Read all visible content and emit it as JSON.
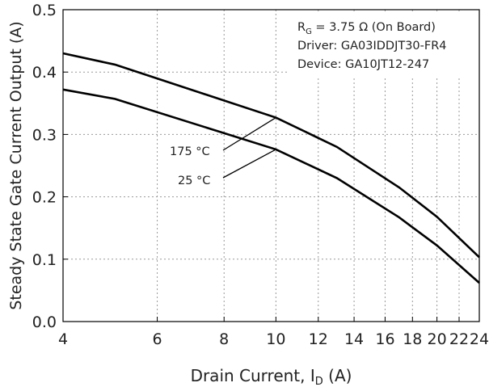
{
  "chart_data": {
    "type": "line",
    "xlabel": [
      "Drain Current, I",
      "D",
      " (A)"
    ],
    "ylabel": "Steady State Gate Current Output (A)",
    "annotation": [
      [
        "R",
        "G",
        " = 3.75 Ω (On Board)"
      ],
      [
        "Driver: GA03IDDJT30-FR4"
      ],
      [
        "Device: GA10JT12-247"
      ]
    ],
    "x": [
      4,
      5,
      10,
      13,
      17,
      20,
      24
    ],
    "series": [
      {
        "name": "175 °C",
        "color": "#000000",
        "values": [
          0.43,
          0.412,
          0.327,
          0.28,
          0.215,
          0.168,
          0.103
        ]
      },
      {
        "name": "25 °C",
        "color": "#000000",
        "values": [
          0.372,
          0.357,
          0.276,
          0.23,
          0.167,
          0.122,
          0.062
        ]
      }
    ],
    "xscale": "log",
    "xlim": [
      4,
      24
    ],
    "xticks": [
      4,
      6,
      8,
      10,
      12,
      14,
      16,
      18,
      20,
      22,
      24
    ],
    "ylim": [
      0,
      0.5
    ],
    "yticks": [
      {
        "value": 0,
        "label": "0.0"
      },
      0.1,
      0.2,
      0.3,
      0.4,
      0.5
    ],
    "grid": true
  }
}
